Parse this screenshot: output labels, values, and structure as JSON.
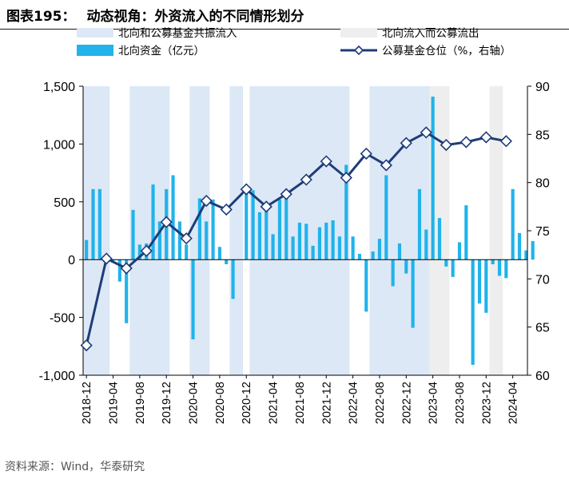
{
  "header": {
    "figure_no": "图表195：",
    "title": "动态视角：外资流入的不同情形划分"
  },
  "source": "资料来源：Wind，华泰研究",
  "colors": {
    "bar": "#21b3ea",
    "line": "#1e3c78",
    "band_both": "#dde8f6",
    "band_north": "#eeeeee",
    "marker_fill": "#ffffff"
  },
  "chart_data": {
    "type": "bar+line",
    "title": "动态视角：外资流入的不同情形划分",
    "legend": {
      "placement": "top",
      "items": [
        {
          "key": "band_both",
          "label": "北向和公募基金共振流入",
          "kind": "band"
        },
        {
          "key": "band_north",
          "label": "北向流入而公募流出",
          "kind": "band"
        },
        {
          "key": "bar",
          "label": "北向资金（亿元）",
          "kind": "bar"
        },
        {
          "key": "line",
          "label": "公募基金仓位（%，右轴）",
          "kind": "line"
        }
      ]
    },
    "left_axis": {
      "min": -1000,
      "max": 1500,
      "ticks": [
        -1000,
        -500,
        0,
        500,
        1000,
        1500
      ],
      "tick_labels": [
        "-1,000",
        "-500",
        "0",
        "500",
        "1,000",
        "1,500"
      ]
    },
    "right_axis": {
      "min": 60,
      "max": 90,
      "ticks": [
        60,
        65,
        70,
        75,
        80,
        85,
        90
      ],
      "tick_labels": [
        "60",
        "65",
        "70",
        "75",
        "80",
        "85",
        "90"
      ]
    },
    "x_ticks": [
      "2018-12",
      "2019-04",
      "2019-08",
      "2019-12",
      "2020-04",
      "2020-08",
      "2020-12",
      "2021-04",
      "2021-08",
      "2021-12",
      "2022-04",
      "2022-08",
      "2022-12",
      "2023-04",
      "2023-08",
      "2023-12",
      "2024-04"
    ],
    "x_range": [
      "2018-12",
      "2024-05"
    ],
    "bar_series": {
      "name": "北向资金（亿元）",
      "points": [
        [
          "2018-12",
          170
        ],
        [
          "2019-01",
          610
        ],
        [
          "2019-02",
          610
        ],
        [
          "2019-03",
          0
        ],
        [
          "2019-04",
          -10
        ],
        [
          "2019-05",
          -190
        ],
        [
          "2019-06",
          -550
        ],
        [
          "2019-07",
          430
        ],
        [
          "2019-08",
          130
        ],
        [
          "2019-09",
          140
        ],
        [
          "2019-10",
          650
        ],
        [
          "2019-11",
          330
        ],
        [
          "2019-12",
          610
        ],
        [
          "2020-01",
          730
        ],
        [
          "2020-02",
          330
        ],
        [
          "2020-03",
          130
        ],
        [
          "2020-04",
          -690
        ],
        [
          "2020-05",
          530
        ],
        [
          "2020-06",
          330
        ],
        [
          "2020-07",
          520
        ],
        [
          "2020-08",
          110
        ],
        [
          "2020-09",
          -40
        ],
        [
          "2020-10",
          -340
        ],
        [
          "2020-11",
          0
        ],
        [
          "2020-12",
          590
        ],
        [
          "2021-01",
          600
        ],
        [
          "2021-02",
          410
        ],
        [
          "2021-03",
          420
        ],
        [
          "2021-04",
          220
        ],
        [
          "2021-05",
          520
        ],
        [
          "2021-06",
          540
        ],
        [
          "2021-07",
          200
        ],
        [
          "2021-08",
          320
        ],
        [
          "2021-09",
          310
        ],
        [
          "2021-10",
          120
        ],
        [
          "2021-11",
          280
        ],
        [
          "2021-12",
          320
        ],
        [
          "2022-01",
          340
        ],
        [
          "2022-02",
          200
        ],
        [
          "2022-03",
          820
        ],
        [
          "2022-04",
          200
        ],
        [
          "2022-05",
          50
        ],
        [
          "2022-06",
          -450
        ],
        [
          "2022-07",
          70
        ],
        [
          "2022-08",
          180
        ],
        [
          "2022-09",
          730
        ],
        [
          "2022-10",
          -230
        ],
        [
          "2022-11",
          140
        ],
        [
          "2022-12",
          -120
        ],
        [
          "2023-01",
          -590
        ],
        [
          "2023-02",
          610
        ],
        [
          "2023-03",
          260
        ],
        [
          "2023-04",
          1410
        ],
        [
          "2023-05",
          360
        ],
        [
          "2023-06",
          -60
        ],
        [
          "2023-07",
          -150
        ],
        [
          "2023-08",
          150
        ],
        [
          "2023-09",
          470
        ],
        [
          "2023-10",
          -910
        ],
        [
          "2023-11",
          -380
        ],
        [
          "2023-12",
          -460
        ],
        [
          "2024-01",
          -40
        ],
        [
          "2024-02",
          -140
        ],
        [
          "2024-03",
          -160
        ],
        [
          "2024-04",
          610
        ],
        [
          "2024-05",
          230
        ],
        [
          "2024-06",
          80
        ],
        [
          "2024-07",
          160
        ]
      ]
    },
    "line_series": {
      "name": "公募基金仓位（%，右轴）",
      "points": [
        [
          "2018-12",
          63.1
        ],
        [
          "2019-03",
          72.1
        ],
        [
          "2019-06",
          71.1
        ],
        [
          "2019-09",
          72.9
        ],
        [
          "2019-12",
          75.9
        ],
        [
          "2020-03",
          74.2
        ],
        [
          "2020-06",
          78.1
        ],
        [
          "2020-09",
          77.2
        ],
        [
          "2020-12",
          79.3
        ],
        [
          "2021-03",
          77.5
        ],
        [
          "2021-06",
          78.8
        ],
        [
          "2021-09",
          80.3
        ],
        [
          "2021-12",
          82.2
        ],
        [
          "2022-03",
          80.5
        ],
        [
          "2022-06",
          83.0
        ],
        [
          "2022-09",
          81.8
        ],
        [
          "2022-12",
          84.1
        ],
        [
          "2023-03",
          85.2
        ],
        [
          "2023-06",
          83.9
        ],
        [
          "2023-09",
          84.2
        ],
        [
          "2023-12",
          84.7
        ],
        [
          "2024-03",
          84.3
        ]
      ]
    },
    "bands": [
      {
        "type": "band_both",
        "from": "2018-12",
        "to": "2019-03"
      },
      {
        "type": "band_both",
        "from": "2019-07",
        "to": "2019-12"
      },
      {
        "type": "band_both",
        "from": "2020-04",
        "to": "2020-06"
      },
      {
        "type": "band_both",
        "from": "2020-10",
        "to": "2020-11"
      },
      {
        "type": "band_both",
        "from": "2021-01",
        "to": "2022-03"
      },
      {
        "type": "band_both",
        "from": "2022-07",
        "to": "2023-03"
      },
      {
        "type": "band_north",
        "from": "2023-04",
        "to": "2023-06"
      },
      {
        "type": "band_north",
        "from": "2024-01",
        "to": "2024-02"
      }
    ]
  }
}
